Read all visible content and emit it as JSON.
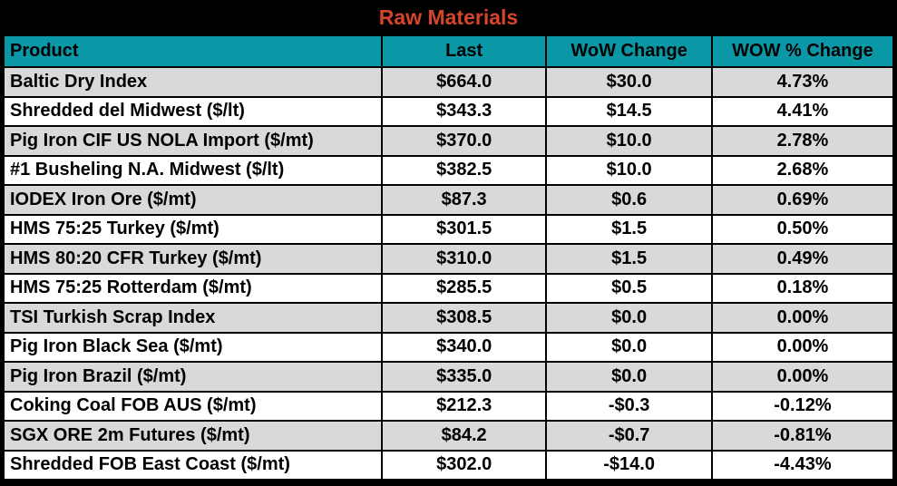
{
  "title": "Raw Materials",
  "colors": {
    "page_background": "#000000",
    "title_text": "#d5452b",
    "header_background": "#0a98a7",
    "header_text": "#000000",
    "row_alt_background": "#d9d9d9",
    "row_background": "#ffffff",
    "body_text": "#000000",
    "border": "#000000"
  },
  "table": {
    "columns": [
      {
        "key": "product",
        "label": "Product"
      },
      {
        "key": "last",
        "label": "Last"
      },
      {
        "key": "wow_change",
        "label": "WoW Change"
      },
      {
        "key": "wow_pct_change",
        "label": "WOW % Change"
      }
    ],
    "rows": [
      {
        "product": "Baltic Dry Index",
        "last": "$664.0",
        "wow_change": "$30.0",
        "wow_pct_change": "4.73%"
      },
      {
        "product": "Shredded del  Midwest ($/lt)",
        "last": "$343.3",
        "wow_change": "$14.5",
        "wow_pct_change": "4.41%"
      },
      {
        "product": "Pig Iron CIF US NOLA Import ($/mt)",
        "last": "$370.0",
        "wow_change": "$10.0",
        "wow_pct_change": "2.78%"
      },
      {
        "product": "#1 Busheling N.A. Midwest ($/lt)",
        "last": "$382.5",
        "wow_change": "$10.0",
        "wow_pct_change": "2.68%"
      },
      {
        "product": "IODEX  Iron Ore ($/mt)",
        "last": "$87.3",
        "wow_change": "$0.6",
        "wow_pct_change": "0.69%"
      },
      {
        "product": "HMS 75:25 Turkey ($/mt)",
        "last": "$301.5",
        "wow_change": "$1.5",
        "wow_pct_change": "0.50%"
      },
      {
        "product": "HMS 80:20 CFR Turkey ($/mt)",
        "last": "$310.0",
        "wow_change": "$1.5",
        "wow_pct_change": "0.49%"
      },
      {
        "product": "HMS 75:25 Rotterdam ($/mt)",
        "last": "$285.5",
        "wow_change": "$0.5",
        "wow_pct_change": "0.18%"
      },
      {
        "product": "TSI Turkish Scrap Index",
        "last": "$308.5",
        "wow_change": "$0.0",
        "wow_pct_change": "0.00%"
      },
      {
        "product": "Pig Iron Black Sea ($/mt)",
        "last": "$340.0",
        "wow_change": "$0.0",
        "wow_pct_change": "0.00%"
      },
      {
        "product": "Pig Iron Brazil ($/mt)",
        "last": "$335.0",
        "wow_change": "$0.0",
        "wow_pct_change": "0.00%"
      },
      {
        "product": "Coking Coal FOB AUS ($/mt)",
        "last": "$212.3",
        "wow_change": "-$0.3",
        "wow_pct_change": "-0.12%"
      },
      {
        "product": "SGX ORE 2m Futures ($/mt)",
        "last": "$84.2",
        "wow_change": "-$0.7",
        "wow_pct_change": "-0.81%"
      },
      {
        "product": "Shredded FOB East Coast ($/mt)",
        "last": "$302.0",
        "wow_change": "-$14.0",
        "wow_pct_change": "-4.43%"
      }
    ]
  },
  "chart_data": {
    "type": "table",
    "title": "Raw Materials",
    "columns": [
      "Product",
      "Last",
      "WoW Change",
      "WOW % Change"
    ],
    "rows": [
      [
        "Baltic Dry Index",
        664.0,
        30.0,
        4.73
      ],
      [
        "Shredded del  Midwest ($/lt)",
        343.3,
        14.5,
        4.41
      ],
      [
        "Pig Iron CIF US NOLA Import ($/mt)",
        370.0,
        10.0,
        2.78
      ],
      [
        "#1 Busheling N.A. Midwest ($/lt)",
        382.5,
        10.0,
        2.68
      ],
      [
        "IODEX  Iron Ore ($/mt)",
        87.3,
        0.6,
        0.69
      ],
      [
        "HMS 75:25 Turkey ($/mt)",
        301.5,
        1.5,
        0.5
      ],
      [
        "HMS 80:20 CFR Turkey ($/mt)",
        310.0,
        1.5,
        0.49
      ],
      [
        "HMS 75:25 Rotterdam ($/mt)",
        285.5,
        0.5,
        0.18
      ],
      [
        "TSI Turkish Scrap Index",
        308.5,
        0.0,
        0.0
      ],
      [
        "Pig Iron Black Sea ($/mt)",
        340.0,
        0.0,
        0.0
      ],
      [
        "Pig Iron Brazil ($/mt)",
        335.0,
        0.0,
        0.0
      ],
      [
        "Coking Coal FOB AUS ($/mt)",
        212.3,
        -0.3,
        -0.12
      ],
      [
        "SGX ORE 2m Futures ($/mt)",
        84.2,
        -0.7,
        -0.81
      ],
      [
        "Shredded FOB East Coast ($/mt)",
        302.0,
        -14.0,
        -4.43
      ]
    ],
    "units": "USD",
    "notes": "Alternating gray/white rows; teal header row; red title on black background"
  }
}
